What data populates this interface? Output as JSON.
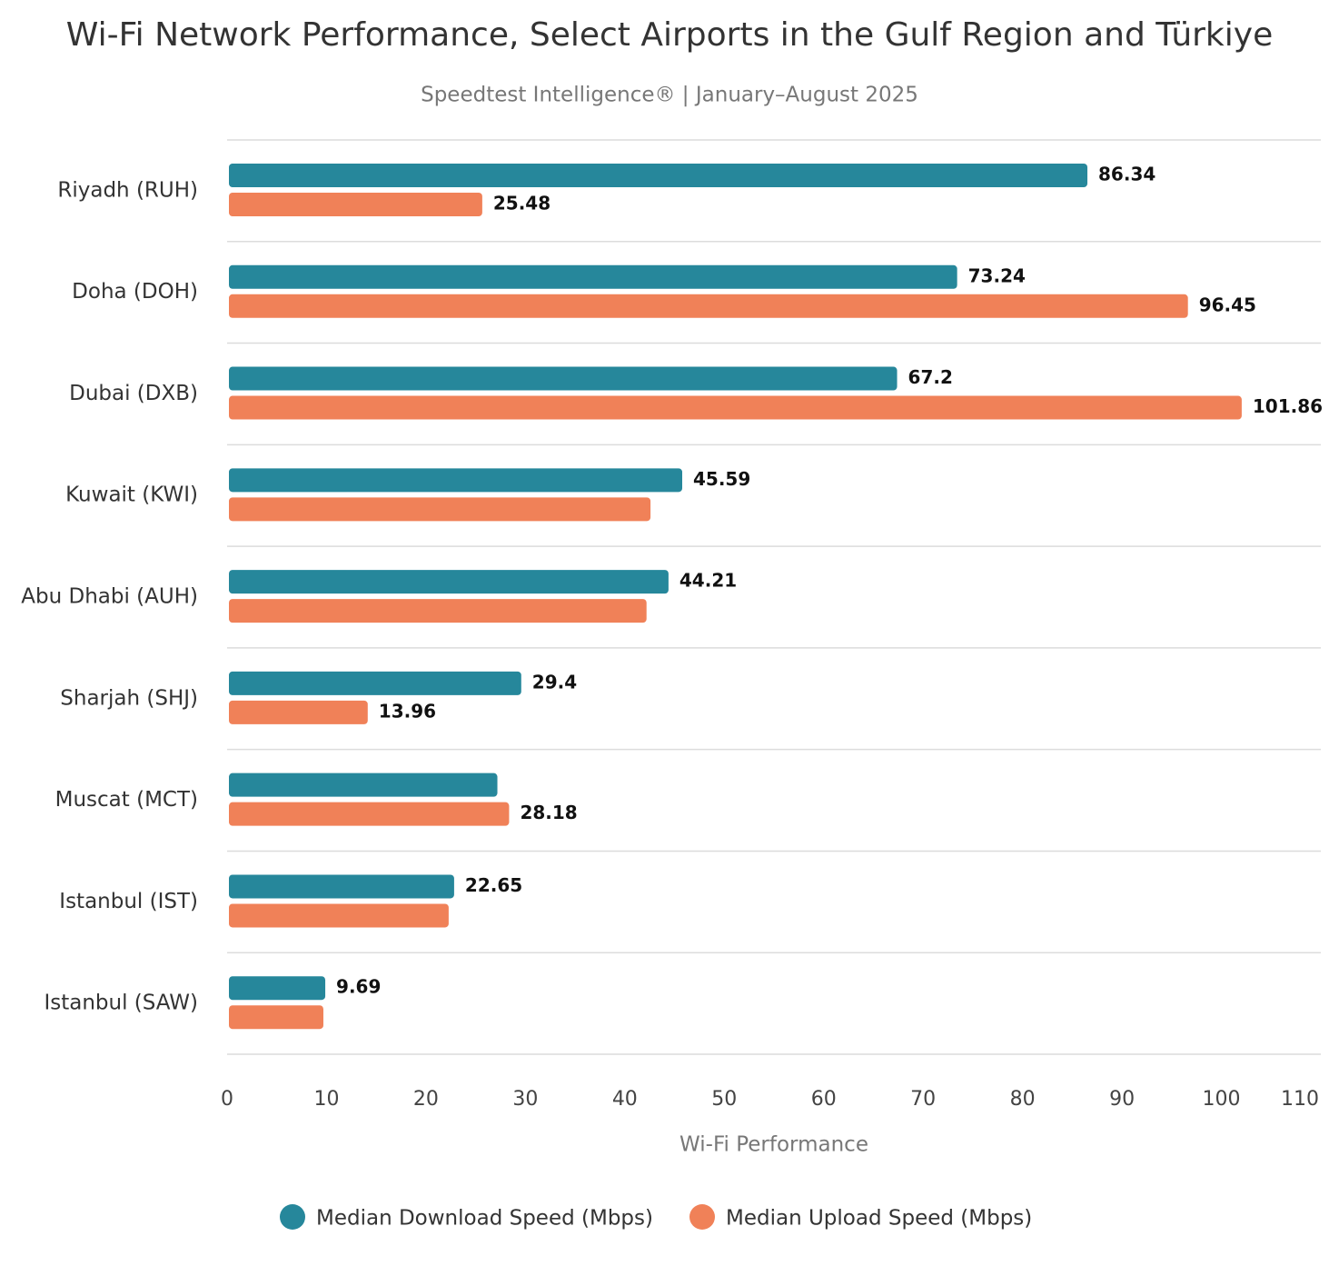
{
  "chart_data": {
    "type": "hbar",
    "title": "Wi-Fi Network Performance, Select Airports in the Gulf Region and Türkiye",
    "subtitle": "Speedtest Intelligence® | January–August 2025",
    "x_label": "Wi-Fi Performance",
    "categories": [
      "Riyadh (RUH)",
      "Doha (DOH)",
      "Dubai (DXB)",
      "Kuwait (KWI)",
      "Abu Dhabi (AUH)",
      "Sharjah (SHJ)",
      "Muscat (MCT)",
      "Istanbul (IST)",
      "Istanbul (SAW)"
    ],
    "series": [
      {
        "name": "Median Download Speed (Mbps)",
        "color": "#26879b",
        "values": [
          86.34,
          73.24,
          67.2,
          45.59,
          44.21,
          29.4,
          27.0,
          22.65,
          9.69
        ],
        "value_labels": [
          "86.34",
          "73.24",
          "67.2",
          "45.59",
          "44.21",
          "29.4",
          null,
          "22.65",
          "9.69"
        ]
      },
      {
        "name": "Median Upload Speed (Mbps)",
        "color": "#f08158",
        "values": [
          25.48,
          96.45,
          101.86,
          42.4,
          42.0,
          13.96,
          28.18,
          22.1,
          9.5
        ],
        "value_labels": [
          "25.48",
          "96.45",
          "101.86",
          null,
          null,
          "13.96",
          "28.18",
          null,
          null
        ]
      }
    ],
    "xlim": [
      0,
      110
    ],
    "xticks": [
      0,
      10,
      20,
      30,
      40,
      50,
      60,
      70,
      80,
      90,
      100,
      110
    ],
    "legend": "bottom"
  }
}
